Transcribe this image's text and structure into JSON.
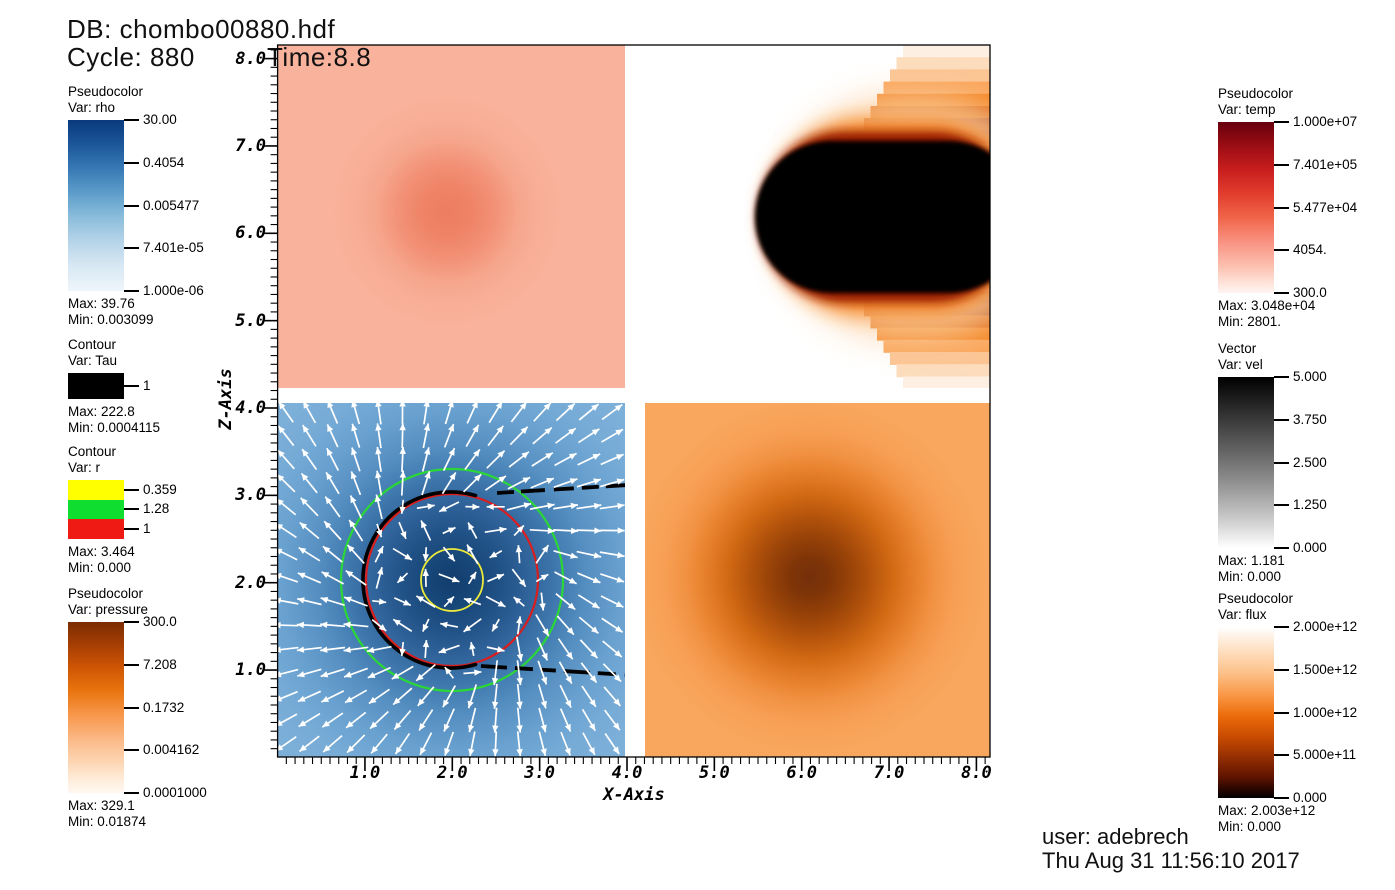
{
  "header": {
    "db": "DB: chombo00880.hdf",
    "cycle": "Cycle: 880",
    "time": "Time:8.8"
  },
  "footer": {
    "user": "user: adebrech",
    "date": "Thu Aug 31 11:56:10 2017"
  },
  "axes": {
    "x_label": "X-Axis",
    "z_label": "Z-Axis",
    "x_ticks": [
      "1.0",
      "2.0",
      "3.0",
      "4.0",
      "5.0",
      "6.0",
      "7.0",
      "8.0"
    ],
    "z_ticks": [
      "1.0",
      "2.0",
      "3.0",
      "4.0",
      "5.0",
      "6.0",
      "7.0",
      "8.0"
    ]
  },
  "legends": {
    "rho": {
      "plot_type": "Pseudocolor",
      "var_label": "Var: rho",
      "ticks": [
        "30.00",
        "0.4054",
        "0.005477",
        "7.401e-05",
        "1.000e-06"
      ],
      "max": "Max:  39.76",
      "min": "Min:  0.003099"
    },
    "tau": {
      "plot_type": "Contour",
      "var_label": "Var: Tau",
      "levels": [
        {
          "color": "#000000",
          "label": "1"
        }
      ],
      "max": "Max:  222.8",
      "min": "Min:  0.0004115"
    },
    "r": {
      "plot_type": "Contour",
      "var_label": "Var: r",
      "levels": [
        {
          "color": "#ffff00",
          "label": "0.359"
        },
        {
          "color": "#0fdd30",
          "label": "1.28"
        },
        {
          "color": "#f01a15",
          "label": "1"
        }
      ],
      "max": "Max:  3.464",
      "min": "Min:  0.000"
    },
    "pressure": {
      "plot_type": "Pseudocolor",
      "var_label": "Var: pressure",
      "ticks": [
        "300.0",
        "7.208",
        "0.1732",
        "0.004162",
        "0.0001000"
      ],
      "max": "Max:  329.1",
      "min": "Min:  0.01874"
    },
    "temp": {
      "plot_type": "Pseudocolor",
      "var_label": "Var: temp",
      "ticks": [
        "1.000e+07",
        "7.401e+05",
        "5.477e+04",
        "4054.",
        "300.0"
      ],
      "max": "Max:  3.048e+04",
      "min": "Min:  2801."
    },
    "vel": {
      "plot_type": "Vector",
      "var_label": "Var: vel",
      "ticks": [
        "5.000",
        "3.750",
        "2.500",
        "1.250",
        "0.000"
      ],
      "max": "Max:  1.181",
      "min": "Min:  0.000"
    },
    "flux": {
      "plot_type": "Pseudocolor",
      "var_label": "Var: flux",
      "ticks": [
        "2.000e+12",
        "1.500e+12",
        "1.000e+12",
        "5.000e+11",
        "0.000"
      ],
      "max": "Max:  2.003e+12",
      "min": "Min:  0.000"
    }
  },
  "chart_data": [
    {
      "type": "heatmap",
      "panel": "top-left",
      "variable": "temp",
      "x_range": [
        0.2,
        3.98
      ],
      "z_range": [
        4.26,
        8.17
      ],
      "colormap": "white-to-dark-red (Reds, log scale)",
      "legend_ticks": [
        10000000.0,
        740100.0,
        54770.0,
        4054,
        300
      ],
      "data_min": 2801,
      "data_max": 30480,
      "features": "pale salmon field with a warmer circular blob centered near panel-local (2.0, 6.2)"
    },
    {
      "type": "heatmap",
      "panel": "top-right",
      "variable": "flux",
      "x_range": [
        4.21,
        8.15
      ],
      "z_range": [
        4.26,
        8.17
      ],
      "colormap": "white-orange-darkred-black (hot inverted, linear)",
      "legend_ticks": [
        2000000000000.0,
        1500000000000.0,
        1000000000000.0,
        500000000000.0,
        0
      ],
      "data_min": 0,
      "data_max": 2003000000000.0,
      "features": "black bullet-shaped zero-flux shadow extending left from right edge at mid-height, rimmed by dark red and orange bands, stepped stripes at right edge, white high-flux background"
    },
    {
      "type": "heatmap+vector+contour",
      "panel": "bottom-left",
      "variable": "rho (pseudocolor), vel (vectors), Tau and r (contours)",
      "x_range": [
        0.2,
        3.98
      ],
      "z_range": [
        0.0,
        4.06
      ],
      "colormap": "Blues (log scale)",
      "legend_ticks": [
        30,
        0.4054,
        0.005477,
        7.401e-05,
        1e-06
      ],
      "data_min": 0.003099,
      "data_max": 39.76,
      "vector_field": "white velocity arrows diverging radially from dense cloud at (2,2), turbulent inside cloud",
      "contours": {
        "r_levels": [
          0.359,
          1.28,
          1
        ],
        "r_level_colors": [
          "#ffff00",
          "#0fdd30",
          "#f01a15"
        ],
        "r_circle_center": [
          2.0,
          2.0
        ],
        "tau_level": 1,
        "tau_color": "#000000",
        "tau_shape": "thick black C-shaped arc around cloud opening rightward with dashed horizontal tails near z=3.1 and z=0.95"
      }
    },
    {
      "type": "heatmap",
      "panel": "bottom-right",
      "variable": "pressure",
      "x_range": [
        4.21,
        8.15
      ],
      "z_range": [
        0.0,
        4.06
      ],
      "colormap": "Oranges (log scale)",
      "legend_ticks": [
        300,
        7.208,
        0.1732,
        0.004162,
        0.0001
      ],
      "data_min": 0.01874,
      "data_max": 329.1,
      "features": "dark brown high-pressure blob centered near panel-local (2.0, 2.0) on orange background"
    }
  ]
}
